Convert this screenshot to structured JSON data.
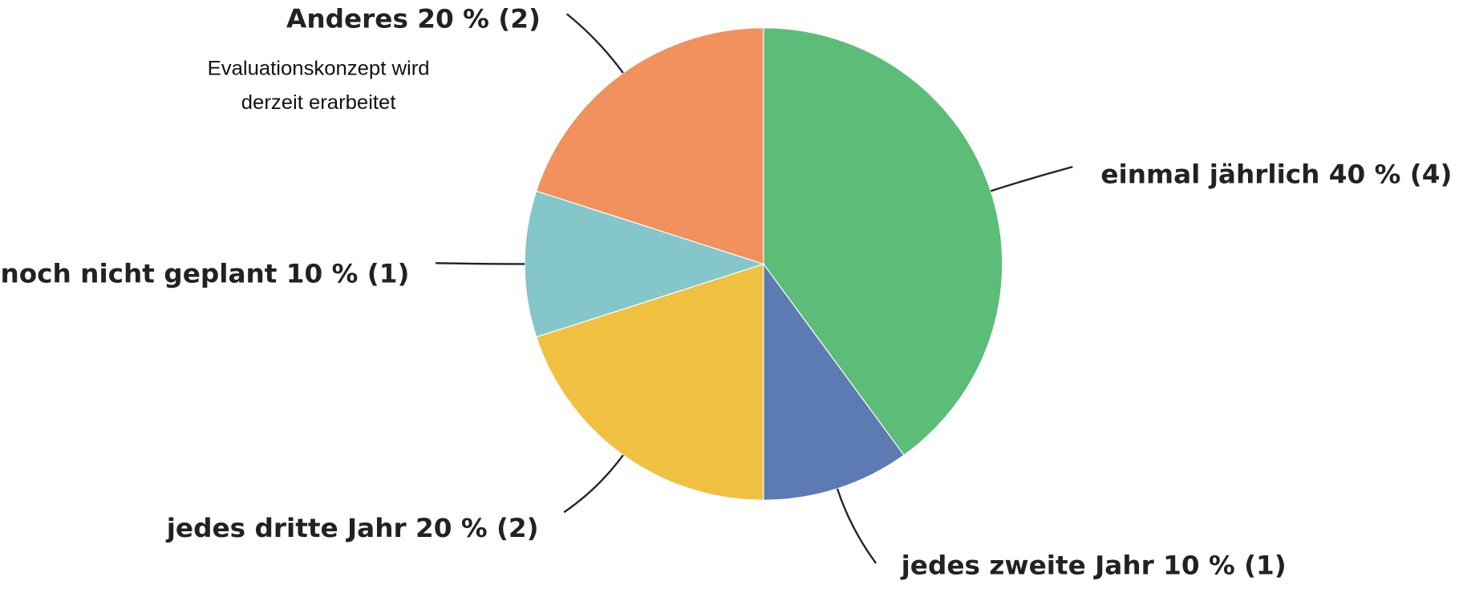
{
  "chart_data": {
    "type": "pie",
    "categories": [
      "einmal jährlich",
      "jedes zweite Jahr",
      "jedes dritte Jahr",
      "noch nicht geplant",
      "Anderes"
    ],
    "values": [
      40,
      10,
      20,
      10,
      20
    ],
    "value_labels": [
      "40 % (4)",
      "10 % (1)",
      "20 % (2)",
      "10 % (1)",
      "20 % (2)"
    ],
    "colors": [
      "#5bbd77",
      "#5b7bb2",
      "#f0c040",
      "#85c6ca",
      "#f0915e"
    ],
    "annotation": [
      "Evaluationskonzept wird",
      "derzeit erarbeitet"
    ]
  }
}
